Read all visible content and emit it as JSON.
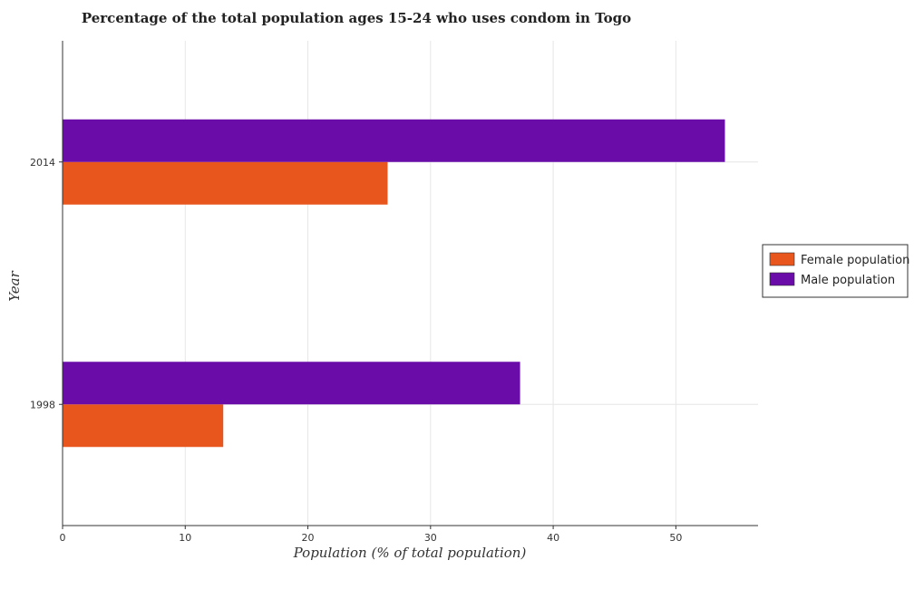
{
  "chart_data": {
    "type": "bar",
    "orientation": "horizontal",
    "title": "Percentage of the total population ages 15-24 who uses condom in Togo",
    "xlabel": "Population (% of total population)",
    "ylabel": "Year",
    "categories": [
      "1998",
      "2014"
    ],
    "series": [
      {
        "name": "Female population",
        "color": "#e8561e",
        "values": [
          13.1,
          26.5
        ]
      },
      {
        "name": "Male population",
        "color": "#6a0da8",
        "values": [
          37.3,
          54.0
        ]
      }
    ],
    "xlim": [
      0,
      56.7
    ],
    "xticks": [
      0,
      10,
      20,
      30,
      40,
      50
    ],
    "grid": true,
    "legend": "right"
  }
}
